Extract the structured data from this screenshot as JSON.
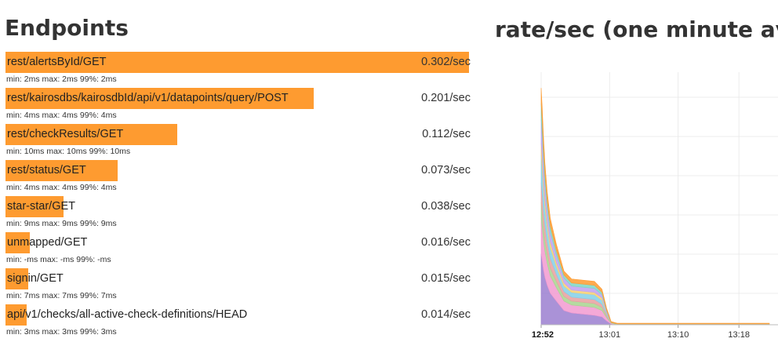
{
  "left_panel": {
    "title": "Endpoints",
    "endpoints": [
      {
        "name": "rest/alertsById/GET",
        "rate": "0.302/sec",
        "rate_value": 0.302,
        "stats": "min: 2ms max: 2ms 99%: 2ms"
      },
      {
        "name": "rest/kairosdbs/kairosdbId/api/v1/datapoints/query/POST",
        "rate": "0.201/sec",
        "rate_value": 0.201,
        "stats": "min: 4ms max: 4ms 99%: 4ms"
      },
      {
        "name": "rest/checkResults/GET",
        "rate": "0.112/sec",
        "rate_value": 0.112,
        "stats": "min: 10ms max: 10ms 99%: 10ms"
      },
      {
        "name": "rest/status/GET",
        "rate": "0.073/sec",
        "rate_value": 0.073,
        "stats": "min: 4ms max: 4ms 99%: 4ms"
      },
      {
        "name": "star-star/GET",
        "rate": "0.038/sec",
        "rate_value": 0.038,
        "stats": "min: 9ms max: 9ms 99%: 9ms"
      },
      {
        "name": "unmapped/GET",
        "rate": "0.016/sec",
        "rate_value": 0.016,
        "stats": "min: -ms max: -ms 99%: -ms"
      },
      {
        "name": "signin/GET",
        "rate": "0.015/sec",
        "rate_value": 0.015,
        "stats": "min: 7ms max: 7ms 99%: 7ms"
      },
      {
        "name": "api/v1/checks/all-active-check-definitions/HEAD",
        "rate": "0.014/sec",
        "rate_value": 0.014,
        "stats": "min: 3ms max: 3ms 99%: 3ms"
      }
    ]
  },
  "right_panel": {
    "title": "rate/sec (one minute avg)"
  },
  "chart_data": {
    "type": "area",
    "stacked": true,
    "grid": true,
    "title": "rate/sec (one minute avg)",
    "xlabel": "",
    "ylabel": "",
    "x_ticks": [
      {
        "label": "12:52",
        "minute": 0,
        "bold": true
      },
      {
        "label": "13:01",
        "minute": 9
      },
      {
        "label": "13:10",
        "minute": 18
      },
      {
        "label": "13:18",
        "minute": 26
      }
    ],
    "x": [
      0,
      0.15,
      0.3,
      0.5,
      0.8,
      1.2,
      2,
      3,
      4,
      5,
      6,
      7,
      8,
      8.6,
      9.2,
      10,
      12,
      15,
      20,
      25,
      30
    ],
    "ylim": [
      0,
      3.2
    ],
    "colors": [
      "#9b7fd0",
      "#f29ad0",
      "#a8d58f",
      "#e8a0a0",
      "#84d0e8",
      "#f7d170",
      "#c0a0f0",
      "#7ed6c6",
      "#fe9b30"
    ],
    "series": [
      {
        "values": [
          0.9,
          0.8,
          0.7,
          0.6,
          0.5,
          0.4,
          0.3,
          0.18,
          0.15,
          0.14,
          0.13,
          0.12,
          0.1,
          0.05,
          0.01,
          0,
          0,
          0,
          0,
          0,
          0
        ]
      },
      {
        "values": [
          0.45,
          0.42,
          0.38,
          0.33,
          0.28,
          0.22,
          0.17,
          0.12,
          0.1,
          0.1,
          0.1,
          0.1,
          0.08,
          0.04,
          0.01,
          0,
          0,
          0,
          0,
          0,
          0
        ]
      },
      {
        "values": [
          0.2,
          0.19,
          0.17,
          0.15,
          0.12,
          0.1,
          0.08,
          0.06,
          0.05,
          0.05,
          0.05,
          0.05,
          0.04,
          0.02,
          0.01,
          0.01,
          0.01,
          0.01,
          0.01,
          0.01,
          0.01
        ]
      },
      {
        "values": [
          0.25,
          0.23,
          0.2,
          0.18,
          0.15,
          0.12,
          0.09,
          0.06,
          0.05,
          0.05,
          0.05,
          0.05,
          0.04,
          0.02,
          0,
          0,
          0,
          0,
          0,
          0,
          0
        ]
      },
      {
        "values": [
          0.35,
          0.32,
          0.28,
          0.22,
          0.18,
          0.14,
          0.1,
          0.07,
          0.06,
          0.06,
          0.06,
          0.06,
          0.05,
          0.02,
          0,
          0,
          0,
          0,
          0,
          0,
          0
        ]
      },
      {
        "values": [
          0.15,
          0.14,
          0.12,
          0.1,
          0.08,
          0.07,
          0.05,
          0.04,
          0.03,
          0.03,
          0.03,
          0.03,
          0.03,
          0.01,
          0,
          0,
          0,
          0,
          0,
          0,
          0
        ]
      },
      {
        "values": [
          0.3,
          0.27,
          0.23,
          0.19,
          0.15,
          0.12,
          0.09,
          0.06,
          0.05,
          0.05,
          0.05,
          0.05,
          0.04,
          0.02,
          0,
          0,
          0,
          0,
          0,
          0,
          0
        ]
      },
      {
        "values": [
          0.2,
          0.18,
          0.15,
          0.13,
          0.1,
          0.08,
          0.06,
          0.04,
          0.04,
          0.04,
          0.04,
          0.04,
          0.03,
          0.01,
          0,
          0,
          0,
          0,
          0,
          0,
          0
        ]
      },
      {
        "values": [
          0.2,
          0.18,
          0.16,
          0.14,
          0.12,
          0.1,
          0.08,
          0.05,
          0.05,
          0.05,
          0.05,
          0.05,
          0.04,
          0.02,
          0.01,
          0.01,
          0.01,
          0.01,
          0.01,
          0.01,
          0.01
        ]
      }
    ]
  }
}
